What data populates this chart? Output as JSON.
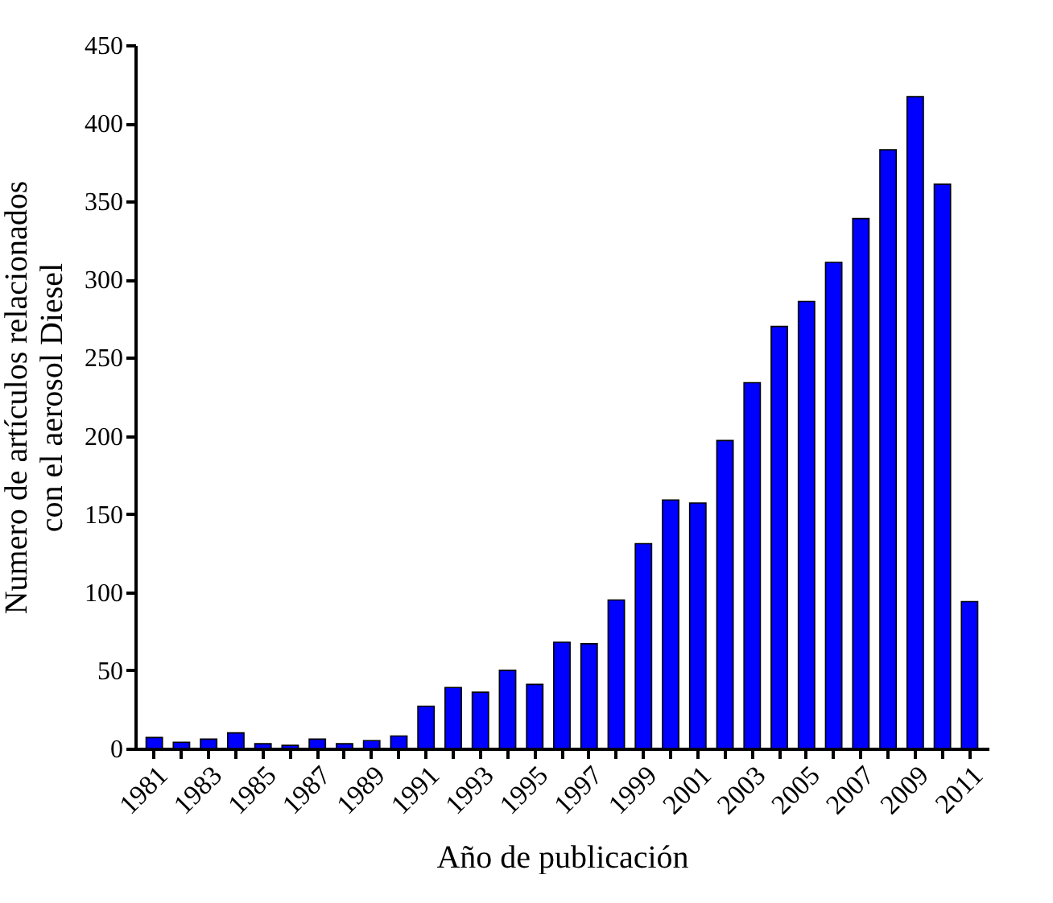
{
  "chart_data": {
    "type": "bar",
    "xlabel": "Año de publicación",
    "ylabel": "Numero de artículos relacionados\ncon el aerosol Diesel",
    "categories": [
      "1981",
      null,
      "1983",
      null,
      "1985",
      null,
      "1987",
      null,
      "1989",
      null,
      "1991",
      null,
      "1993",
      null,
      "1995",
      null,
      "1997",
      null,
      "1999",
      null,
      "2001",
      null,
      "2003",
      null,
      "2005",
      null,
      "2007",
      null,
      "2009",
      null,
      "2011"
    ],
    "values": [
      7,
      4,
      6,
      10,
      3,
      2,
      6,
      3,
      5,
      8,
      27,
      39,
      36,
      50,
      41,
      68,
      67,
      95,
      131,
      159,
      157,
      197,
      234,
      270,
      286,
      311,
      339,
      383,
      417,
      361,
      94
    ],
    "color": "#0000ff",
    "ylim": [
      0,
      450
    ],
    "yticks": [
      0,
      50,
      100,
      150,
      200,
      250,
      300,
      350,
      400,
      450
    ],
    "grid": false
  }
}
